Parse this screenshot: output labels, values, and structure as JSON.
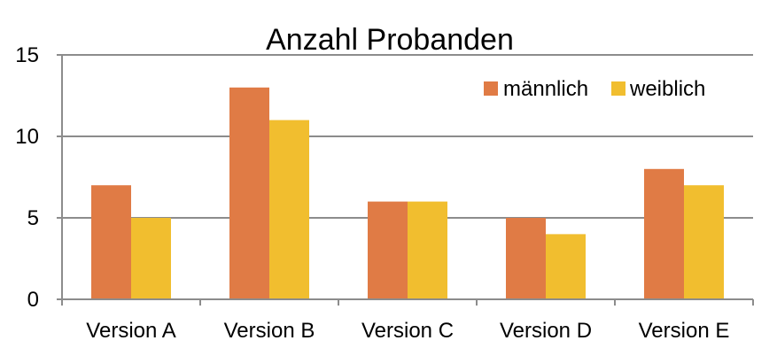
{
  "chart_data": {
    "type": "bar",
    "title": "Anzahl Probanden",
    "xlabel": "",
    "ylabel": "",
    "categories": [
      "Version A",
      "Version B",
      "Version C",
      "Version D",
      "Version E"
    ],
    "series": [
      {
        "name": "männlich",
        "values": [
          7,
          13,
          6,
          5,
          8
        ],
        "color": "#E07B45"
      },
      {
        "name": "weiblich",
        "values": [
          5,
          11,
          6,
          4,
          7
        ],
        "color": "#F1BE2F"
      }
    ],
    "ylim": [
      0,
      15
    ],
    "yticks": [
      0,
      5,
      10,
      15
    ],
    "grid": true,
    "legend_position": "top-right"
  }
}
